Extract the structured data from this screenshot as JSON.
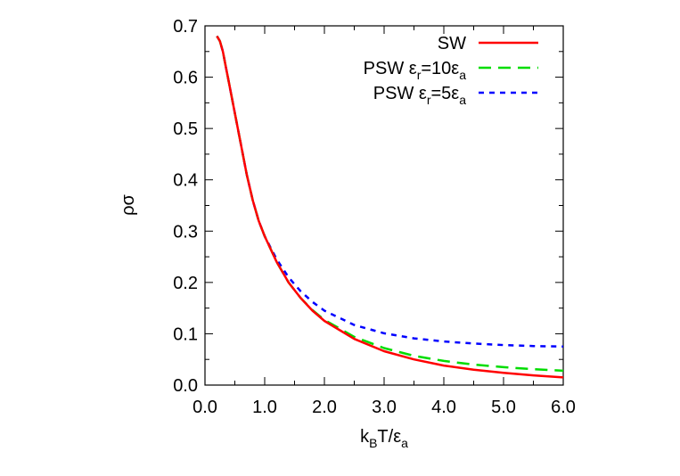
{
  "chart_data": {
    "type": "line",
    "xlabel": {
      "base": "k",
      "sub1": "B",
      "mid": "T/ε",
      "sub2": "a"
    },
    "ylabel": "ρσ",
    "xlim": [
      0.0,
      6.0
    ],
    "ylim": [
      0.0,
      0.7
    ],
    "x_ticks": [
      "0.0",
      "1.0",
      "2.0",
      "3.0",
      "4.0",
      "5.0",
      "6.0"
    ],
    "y_ticks": [
      "0.0",
      "0.1",
      "0.2",
      "0.3",
      "0.4",
      "0.5",
      "0.6",
      "0.7"
    ],
    "x_tick_values": [
      0,
      1,
      2,
      3,
      4,
      5,
      6
    ],
    "y_tick_values": [
      0,
      0.1,
      0.2,
      0.3,
      0.4,
      0.5,
      0.6,
      0.7
    ],
    "grid": false,
    "legend_position": "top-right",
    "series": [
      {
        "name": "SW",
        "legend": {
          "main": "SW",
          "parts": []
        },
        "color": "#ff0000",
        "dash": "solid",
        "x": [
          0.2,
          0.25,
          0.3,
          0.35,
          0.4,
          0.5,
          0.6,
          0.7,
          0.8,
          0.9,
          1.0,
          1.2,
          1.4,
          1.6,
          1.8,
          2.0,
          2.5,
          3.0,
          3.5,
          4.0,
          4.5,
          5.0,
          5.5,
          6.0
        ],
        "y": [
          0.68,
          0.67,
          0.65,
          0.62,
          0.59,
          0.53,
          0.47,
          0.41,
          0.36,
          0.32,
          0.29,
          0.24,
          0.2,
          0.17,
          0.145,
          0.125,
          0.09,
          0.066,
          0.05,
          0.038,
          0.03,
          0.024,
          0.019,
          0.015
        ]
      },
      {
        "name": "PSW εr=10εa",
        "legend": {
          "main": "PSW ε",
          "parts": [
            {
              "sub": "r"
            },
            {
              "text": "=10ε"
            },
            {
              "sub": "a"
            }
          ]
        },
        "color": "#00dd00",
        "dash": "long",
        "x": [
          0.2,
          0.25,
          0.3,
          0.35,
          0.4,
          0.5,
          0.6,
          0.7,
          0.8,
          0.9,
          1.0,
          1.2,
          1.4,
          1.6,
          1.8,
          2.0,
          2.5,
          3.0,
          3.5,
          4.0,
          4.5,
          5.0,
          5.5,
          6.0
        ],
        "y": [
          0.68,
          0.67,
          0.65,
          0.62,
          0.59,
          0.53,
          0.47,
          0.41,
          0.36,
          0.32,
          0.29,
          0.24,
          0.2,
          0.17,
          0.146,
          0.127,
          0.094,
          0.072,
          0.057,
          0.047,
          0.04,
          0.035,
          0.031,
          0.028
        ]
      },
      {
        "name": "PSW εr=5εa",
        "legend": {
          "main": "PSW ε",
          "parts": [
            {
              "sub": "r"
            },
            {
              "text": "=5ε"
            },
            {
              "sub": "a"
            }
          ]
        },
        "color": "#0000ff",
        "dash": "short",
        "x": [
          0.2,
          0.25,
          0.3,
          0.35,
          0.4,
          0.5,
          0.6,
          0.7,
          0.8,
          0.9,
          1.0,
          1.2,
          1.4,
          1.6,
          1.8,
          2.0,
          2.5,
          3.0,
          3.5,
          4.0,
          4.5,
          5.0,
          5.5,
          6.0
        ],
        "y": [
          0.68,
          0.67,
          0.65,
          0.62,
          0.59,
          0.53,
          0.47,
          0.41,
          0.36,
          0.32,
          0.29,
          0.245,
          0.21,
          0.183,
          0.162,
          0.145,
          0.117,
          0.101,
          0.091,
          0.085,
          0.081,
          0.078,
          0.076,
          0.075
        ]
      }
    ]
  }
}
